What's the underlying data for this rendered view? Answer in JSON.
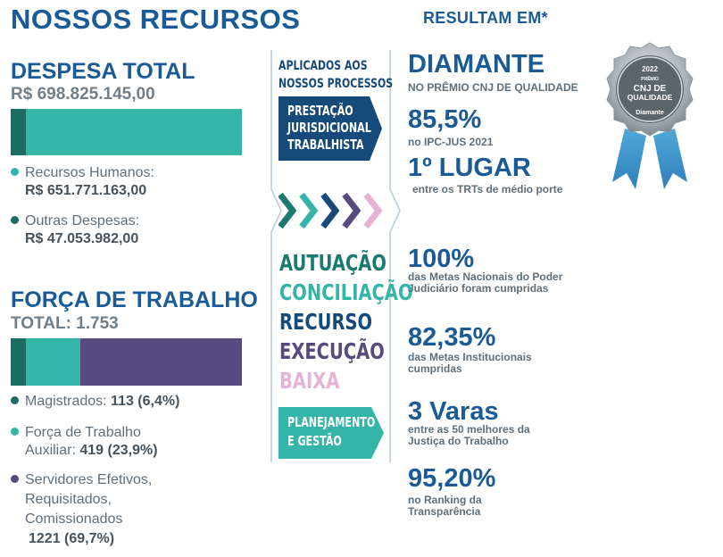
{
  "left": {
    "title": "NOSSOS RECURSOS",
    "despesa": {
      "heading": "DESPESA TOTAL",
      "total": "R$ 698.825.145,00",
      "bar_shares": [
        0.0673,
        0.9327
      ],
      "bar_colors": [
        "#1e6b63",
        "#35b5a8"
      ],
      "items": [
        {
          "label": "Recursos Humanos:",
          "value": "R$ 651.771.163,00",
          "color": "#35b5a8"
        },
        {
          "label": "Outras Despesas:",
          "value": "R$ 47.053.982,00",
          "color": "#1e6b63"
        }
      ]
    },
    "forca": {
      "heading": "FORÇA DE TRABALHO",
      "total": "TOTAL: 1.753",
      "bar_shares": [
        0.064,
        0.239,
        0.697
      ],
      "bar_colors": [
        "#1e6b63",
        "#35b5a8",
        "#574a7e"
      ],
      "items": [
        {
          "label": "Magistrados:",
          "value": "113 (6,4%)",
          "color": "#1e6b63"
        },
        {
          "label_lines": [
            "Força de Trabalho",
            "Auxiliar:"
          ],
          "value": "419 (23,9%)",
          "color": "#35b5a8"
        },
        {
          "label_lines": [
            "Servidores Efetivos,",
            "Requisitados,",
            "Comissionados"
          ],
          "value": "1221 (69,7%)",
          "color": "#574a7e"
        }
      ]
    }
  },
  "middle": {
    "applied_line1": "APLICADOS AOS",
    "applied_line2": "NOSSOS PROCESSOS",
    "box1": [
      "PRESTAÇÃO",
      "JURISDICIONAL",
      "TRABALHISTA"
    ],
    "box1_color": "#154a7a",
    "chevron_colors": [
      "#1a7a70",
      "#35b5a8",
      "#154a7a",
      "#574a7e",
      "#e4b3d8"
    ],
    "words": [
      {
        "text": "AUTUAÇÃO",
        "color": "#1a7a70"
      },
      {
        "text": "CONCILIAÇÃO",
        "color": "#35b5a8"
      },
      {
        "text": "RECURSO",
        "color": "#154a7a"
      },
      {
        "text": "EXECUÇÃO",
        "color": "#574a7e"
      },
      {
        "text": "BAIXA",
        "color": "#e4b3d8"
      }
    ],
    "box2": [
      "PLANEJAMENTO",
      "E GESTÃO"
    ],
    "box2_color": "#35b5a8"
  },
  "right": {
    "title": "RESULTAM EM*",
    "results": [
      {
        "big": "DIAMANTE",
        "small": [
          "NO PRÊMIO CNJ DE QUALIDADE"
        ]
      },
      {
        "big": "85,5%",
        "small": [
          "no IPC-JUS 2021"
        ]
      },
      {
        "big": "1º LUGAR",
        "small": [
          "entre os TRTs de médio porte"
        ]
      },
      {
        "big": "100%",
        "small": [
          "das Metas Nacionais do Poder",
          "Judiciário foram cumpridas"
        ]
      },
      {
        "big": "82,35%",
        "small": [
          "das Metas Institucionais",
          "cumpridas"
        ]
      },
      {
        "big": "3 Varas",
        "small": [
          "entre as 50 melhores da",
          "Justiça do Trabalho"
        ]
      },
      {
        "big": "95,20%",
        "small": [
          "no Ranking da",
          "Transparência"
        ]
      }
    ]
  },
  "medal": {
    "year": "2022",
    "premio": "PRÊMIO",
    "cnj": "CNJ DE",
    "qualidade": "QUALIDADE",
    "level": "Diamante"
  }
}
